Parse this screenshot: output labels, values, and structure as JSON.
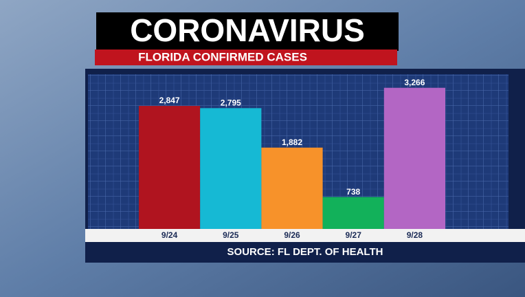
{
  "chart_data": {
    "type": "bar",
    "title": "CORONAVIRUS",
    "subtitle": "FLORIDA CONFIRMED CASES",
    "categories": [
      "9/24",
      "9/25",
      "9/26",
      "9/27",
      "9/28"
    ],
    "values": [
      2847,
      2795,
      1882,
      738,
      3266
    ],
    "value_labels": [
      "2,847",
      "2,795",
      "1,882",
      "738",
      "3,266"
    ],
    "colors": [
      "#b0141f",
      "#16b9d4",
      "#f7922a",
      "#12b15a",
      "#b366c4"
    ],
    "ylim": [
      0,
      3500
    ],
    "source": "SOURCE: FL DEPT. OF HEALTH"
  }
}
